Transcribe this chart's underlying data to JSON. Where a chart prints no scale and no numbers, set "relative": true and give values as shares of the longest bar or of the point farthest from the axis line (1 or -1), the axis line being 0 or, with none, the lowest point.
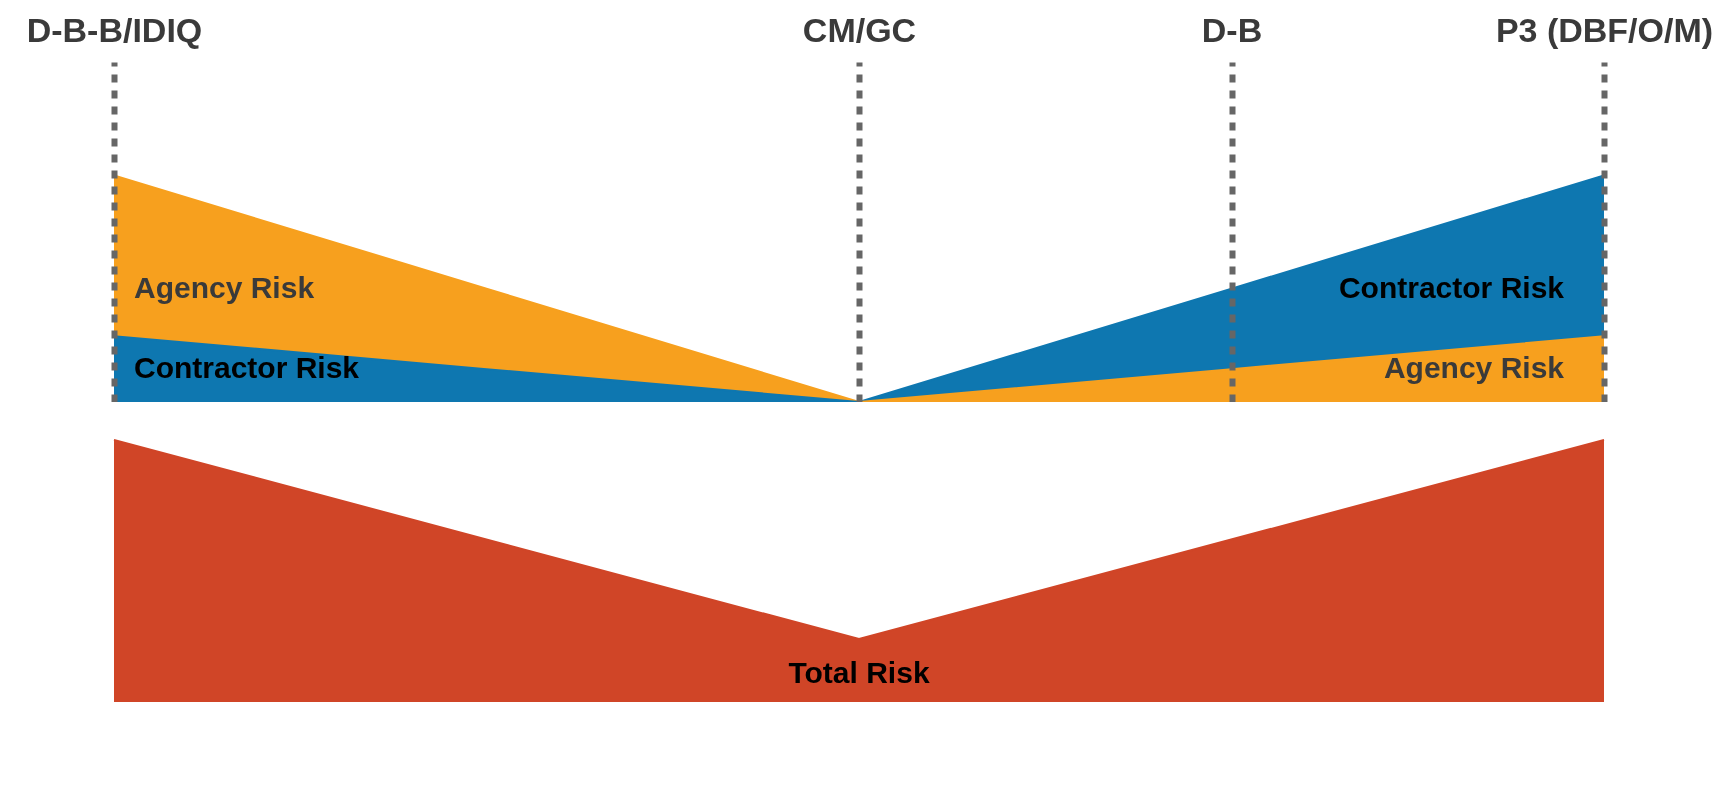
{
  "chart_data": [
    {
      "type": "area",
      "relative": true,
      "categories": [
        "D-B-B/IDIQ",
        null,
        "CM/GC",
        "D-B",
        "P3 (DBF/O/M)"
      ],
      "grid": "x",
      "series": [
        {
          "name": "Agency Risk",
          "color": "#f7a01e",
          "values": [
            1,
            0.5,
            0,
            null,
            null
          ]
        },
        {
          "name": "Contractor Risk",
          "color": "#0e77b0",
          "values": [
            0.29,
            0.145,
            0,
            null,
            null
          ]
        },
        {
          "name": "Contractor Risk",
          "color": "#0e77b0",
          "values": [
            null,
            null,
            0,
            0.5,
            1
          ]
        },
        {
          "name": "Agency Risk",
          "color": "#f7a01e",
          "values": [
            null,
            null,
            0,
            0.145,
            0.29
          ]
        }
      ]
    },
    {
      "type": "area",
      "relative": true,
      "categories": [
        null,
        null,
        null
      ],
      "series": [
        {
          "name": "Total Risk",
          "color": "#d04527",
          "values": [
            1,
            0.24,
            1
          ]
        }
      ]
    }
  ]
}
